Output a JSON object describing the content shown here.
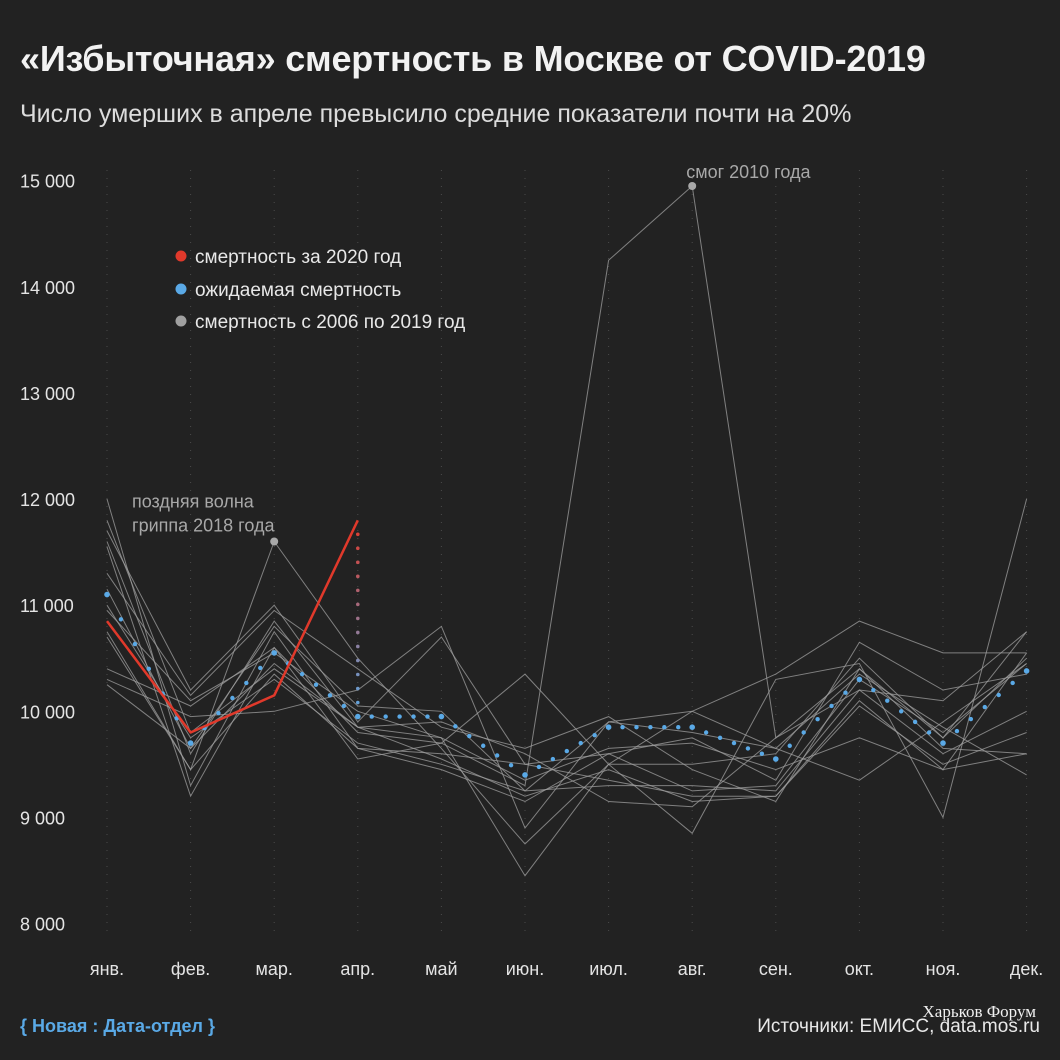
{
  "title": "«Избыточная» смертность в Москве от COVID-2019",
  "subtitle": "Число умерших в апреле превысило средние показатели почти на 20%",
  "footer": {
    "brand": "{ Новая : Дата-отдел }",
    "sources": "Источники: ЕМИСС, data.mos.ru",
    "watermark": "Харьков Форум"
  },
  "colors": {
    "background": "#222222",
    "actual_2020": "#e0392b",
    "expected": "#5aa9e6",
    "historical": "#a0a0a0",
    "brand": "#5aa9e6"
  },
  "chart_data": {
    "type": "line",
    "title": "«Избыточная» смертность в Москве от COVID-2019",
    "subtitle": "Число умерших в апреле превысило средние показатели почти на 20%",
    "categories": [
      "янв.",
      "фев.",
      "мар.",
      "апр.",
      "май",
      "июн.",
      "июл.",
      "авг.",
      "сен.",
      "окт.",
      "ноя.",
      "дек."
    ],
    "ylim": [
      8000,
      15000
    ],
    "yticks": [
      8000,
      9000,
      10000,
      11000,
      12000,
      13000,
      14000,
      15000
    ],
    "ytick_labels": [
      "8 000",
      "9 000",
      "10 000",
      "11 000",
      "12 000",
      "13 000",
      "14 000",
      "15 000"
    ],
    "grid": "vertical dotted",
    "legend_placement": "top-left",
    "legend": [
      {
        "label": "смертность за 2020 год",
        "color": "#e0392b"
      },
      {
        "label": "ожидаемая смертность",
        "color": "#5aa9e6"
      },
      {
        "label": "смертность с 2006 по 2019 год",
        "color": "#a0a0a0"
      }
    ],
    "series_2020": {
      "values": [
        10850,
        9800,
        10150,
        11800
      ]
    },
    "expected": {
      "values": [
        11100,
        9700,
        10550,
        9950,
        9950,
        9400,
        9850,
        9850,
        9550,
        10300,
        9700,
        10380
      ]
    },
    "historical": [
      {
        "values": [
          11000,
          9750,
          10300,
          9700,
          9500,
          9250,
          9300,
          9300,
          9250,
          10200,
          9600,
          10000
        ]
      },
      {
        "values": [
          11800,
          9800,
          10400,
          9850,
          9550,
          9200,
          9450,
          9150,
          9200,
          10100,
          9450,
          9600
        ]
      },
      {
        "values": [
          12000,
          9300,
          10750,
          9650,
          9600,
          9500,
          9350,
          9200,
          9200,
          10050,
          9500,
          9800
        ]
      },
      {
        "values": [
          11550,
          9200,
          10600,
          9800,
          9700,
          9300,
          14250,
          14950,
          9750,
          10400,
          9750,
          10500
        ]
      },
      {
        "values": [
          11700,
          10200,
          11000,
          9900,
          10700,
          9500,
          9600,
          9250,
          9300,
          10300,
          9800,
          10450
        ]
      },
      {
        "values": [
          11600,
          9600,
          10850,
          9850,
          9750,
          8450,
          9500,
          8850,
          10300,
          10450,
          9000,
          12000
        ]
      },
      {
        "values": [
          10700,
          9450,
          11600,
          10500,
          9650,
          8750,
          9500,
          9500,
          9600,
          10500,
          9750,
          10750
        ]
      },
      {
        "values": [
          10300,
          9950,
          10000,
          10200,
          10800,
          8900,
          9900,
          10000,
          10350,
          10850,
          10550,
          10550
        ]
      },
      {
        "values": [
          10250,
          9650,
          10450,
          9850,
          9900,
          9600,
          9150,
          9100,
          9750,
          10200,
          10100,
          10750
        ]
      },
      {
        "values": [
          10400,
          10050,
          10600,
          9550,
          9700,
          10350,
          9500,
          10000,
          9650,
          10350,
          9850,
          9400
        ]
      },
      {
        "values": [
          10750,
          9450,
          10350,
          9650,
          9450,
          9150,
          9600,
          9750,
          9350,
          10650,
          10200,
          10350
        ]
      },
      {
        "values": [
          11300,
          10150,
          10950,
          10400,
          9850,
          9650,
          9950,
          9450,
          9150,
          10400,
          9650,
          9600
        ]
      },
      {
        "values": [
          10950,
          10100,
          10550,
          10000,
          9750,
          9350,
          9650,
          9700,
          9450,
          9750,
          9450,
          10550
        ]
      },
      {
        "values": [
          11150,
          9650,
          10800,
          10050,
          10000,
          9250,
          9900,
          9800,
          9650,
          9350,
          9900,
          10450
        ]
      }
    ],
    "annotations": [
      {
        "text_lines": [
          "поздняя волна",
          "гриппа 2018 года"
        ],
        "month_index": 2,
        "value": 11600
      },
      {
        "text_lines": [
          "смог 2010 года"
        ],
        "month_index": 7,
        "value": 14950
      }
    ]
  }
}
